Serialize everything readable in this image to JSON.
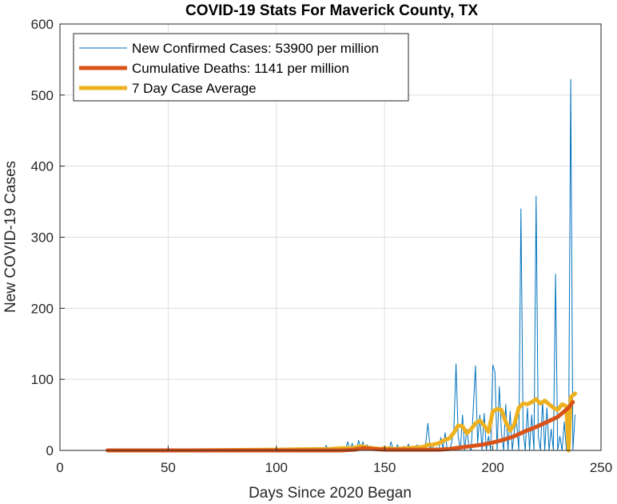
{
  "chart_data": {
    "type": "line",
    "title": "COVID-19 Stats For Maverick County, TX",
    "xlabel": "Days Since 2020 Began",
    "ylabel": "New COVID-19 Cases",
    "xlim": [
      0,
      250
    ],
    "ylim": [
      0,
      600
    ],
    "xticks": [
      0,
      50,
      100,
      150,
      200,
      250
    ],
    "yticks": [
      0,
      100,
      200,
      300,
      400,
      500,
      600
    ],
    "xtick_labels": [
      "0",
      "50",
      "100",
      "150",
      "200",
      "250"
    ],
    "ytick_labels": [
      "0",
      "100",
      "200",
      "300",
      "400",
      "500",
      "600"
    ],
    "grid": true,
    "legend_position": "top-left",
    "series": [
      {
        "name": "New Confirmed Cases: 53900 per million",
        "color": "#0072BD",
        "line_width": "thin",
        "x": [
          22,
          60,
          100,
          120,
          122,
          123,
          124,
          128,
          130,
          132,
          133,
          134,
          135,
          136,
          137,
          138,
          139,
          140,
          141,
          142,
          143,
          144,
          145,
          146,
          147,
          148,
          149,
          150,
          151,
          152,
          153,
          154,
          155,
          156,
          157,
          158,
          159,
          160,
          161,
          162,
          163,
          164,
          165,
          166,
          167,
          168,
          169,
          170,
          171,
          172,
          173,
          174,
          175,
          176,
          177,
          178,
          179,
          180,
          181,
          182,
          183,
          184,
          185,
          186,
          187,
          188,
          189,
          190,
          191,
          192,
          193,
          194,
          195,
          196,
          197,
          198,
          199,
          200,
          201,
          202,
          203,
          204,
          205,
          206,
          207,
          208,
          209,
          210,
          211,
          212,
          213,
          214,
          215,
          216,
          217,
          218,
          219,
          220,
          221,
          222,
          223,
          224,
          225,
          226,
          227,
          228,
          229,
          230,
          231,
          232,
          233,
          234,
          235,
          236,
          237,
          238
        ],
        "y": [
          0,
          0,
          0,
          0,
          0,
          7,
          0,
          0,
          0,
          2,
          12,
          0,
          10,
          2,
          0,
          14,
          4,
          12,
          2,
          8,
          0,
          3,
          0,
          0,
          0,
          1,
          3,
          4,
          0,
          0,
          12,
          0,
          1,
          8,
          0,
          2,
          6,
          0,
          9,
          0,
          4,
          0,
          8,
          0,
          6,
          0,
          10,
          38,
          2,
          8,
          0,
          4,
          0,
          18,
          2,
          25,
          0,
          0,
          11,
          30,
          122,
          20,
          0,
          50,
          0,
          30,
          5,
          0,
          60,
          119,
          10,
          50,
          0,
          52,
          0,
          20,
          0,
          120,
          110,
          0,
          90,
          25,
          0,
          65,
          0,
          55,
          0,
          30,
          40,
          0,
          340,
          30,
          0,
          60,
          0,
          50,
          0,
          358,
          20,
          0,
          70,
          0,
          60,
          0,
          30,
          0,
          248,
          0,
          20,
          0,
          40,
          0,
          0,
          522,
          0,
          50
        ]
      },
      {
        "name": "Cumulative Deaths: 1141 per million",
        "color": "#D95319",
        "line_width": "thick",
        "x": [
          22,
          60,
          100,
          130,
          136,
          140,
          145,
          150,
          160,
          170,
          175,
          180,
          185,
          190,
          195,
          200,
          205,
          210,
          215,
          220,
          225,
          230,
          235,
          237
        ],
        "y": [
          0,
          0,
          0,
          0,
          1,
          3,
          2,
          1,
          1,
          1,
          1,
          2,
          4,
          6,
          8,
          11,
          15,
          20,
          27,
          33,
          40,
          47,
          60,
          68
        ]
      },
      {
        "name": "7 Day Case Average",
        "color": "#EDB120",
        "line_width": "thick",
        "x": [
          22,
          60,
          100,
          125,
          130,
          135,
          138,
          140,
          142,
          145,
          148,
          150,
          155,
          160,
          165,
          168,
          170,
          172,
          175,
          178,
          180,
          182,
          184,
          186,
          188,
          190,
          192,
          194,
          196,
          198,
          200,
          202,
          204,
          206,
          208,
          210,
          212,
          214,
          216,
          218,
          220,
          222,
          224,
          226,
          228,
          230,
          232,
          234,
          235,
          236,
          238
        ],
        "y": [
          0,
          0,
          1,
          2,
          3,
          3,
          5,
          6,
          4,
          3,
          2,
          3,
          2,
          3,
          4,
          5,
          8,
          8,
          10,
          15,
          17,
          25,
          35,
          34,
          24,
          30,
          38,
          42,
          35,
          26,
          55,
          58,
          57,
          40,
          28,
          37,
          60,
          66,
          65,
          68,
          72,
          66,
          70,
          65,
          60,
          57,
          65,
          62,
          0,
          75,
          80
        ]
      }
    ]
  }
}
